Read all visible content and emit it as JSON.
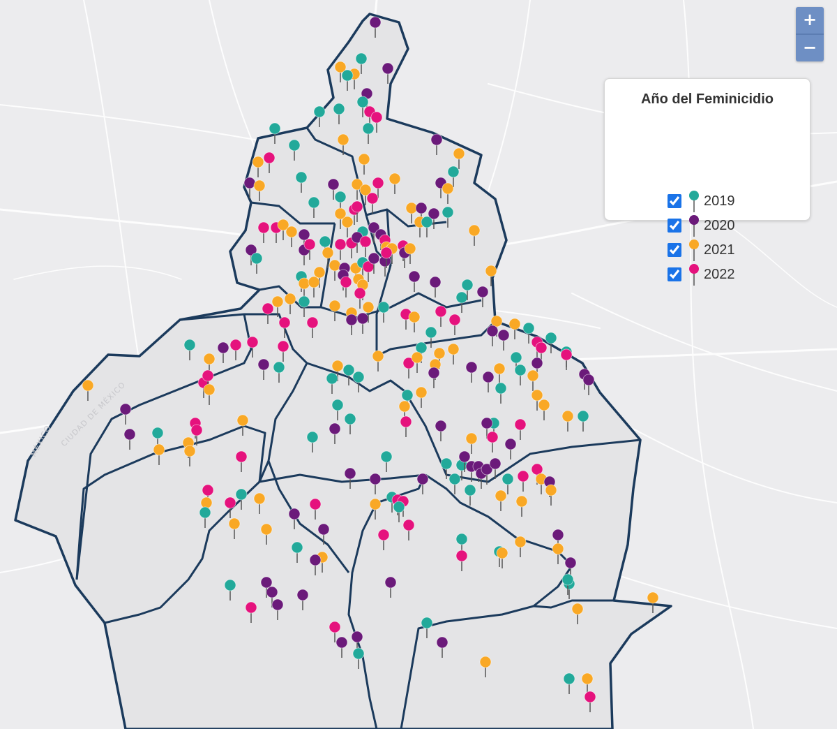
{
  "map": {
    "basemap_labels": [
      "MÉXICO",
      "CIUDAD DE MÉXICO"
    ],
    "colors": {
      "background": "#ececee",
      "region_fill": "#e4e4e6",
      "border": "#1b3a5c",
      "roads": "#ffffff"
    }
  },
  "zoom": {
    "in_label": "+",
    "out_label": "−"
  },
  "legend": {
    "title": "Año del Feminicidio",
    "items": [
      {
        "year": "2019",
        "color": "#22a99a",
        "checked": true
      },
      {
        "year": "2020",
        "color": "#6b1a7a",
        "checked": true
      },
      {
        "year": "2021",
        "color": "#f9a825",
        "checked": true
      },
      {
        "year": "2022",
        "color": "#e5127d",
        "checked": true
      }
    ]
  }
}
